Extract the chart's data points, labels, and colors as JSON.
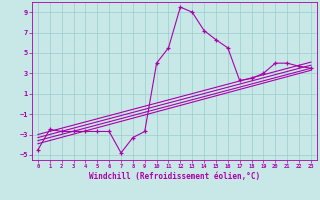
{
  "title": "",
  "xlabel": "Windchill (Refroidissement éolien,°C)",
  "ylabel": "",
  "bg_color": "#c8e8e8",
  "line_color": "#aa00aa",
  "grid_color": "#99cccc",
  "xlim": [
    -0.5,
    23.5
  ],
  "ylim": [
    -5.5,
    10.0
  ],
  "xtick_vals": [
    0,
    1,
    2,
    3,
    4,
    5,
    6,
    7,
    8,
    9,
    10,
    11,
    12,
    13,
    14,
    15,
    16,
    17,
    18,
    19,
    20,
    21,
    22,
    23
  ],
  "ytick_vals": [
    -5,
    -3,
    -1,
    1,
    3,
    5,
    7,
    9
  ],
  "data_x": [
    0,
    1,
    2,
    3,
    4,
    5,
    6,
    7,
    8,
    9,
    10,
    11,
    12,
    13,
    14,
    15,
    16,
    17,
    18,
    19,
    20,
    21,
    22,
    23
  ],
  "data_y": [
    -4.5,
    -2.5,
    -2.7,
    -2.7,
    -2.7,
    -2.7,
    -2.7,
    -4.8,
    -3.3,
    -2.7,
    4.0,
    5.5,
    9.5,
    9.0,
    7.2,
    6.3,
    5.5,
    2.3,
    2.5,
    3.0,
    4.0,
    4.0,
    3.7,
    3.5
  ],
  "reg_lines": [
    {
      "x0": 0,
      "y0": -3.9,
      "x1": 23,
      "y1": 3.3
    },
    {
      "x0": 0,
      "y0": -3.6,
      "x1": 23,
      "y1": 3.5
    },
    {
      "x0": 0,
      "y0": -3.3,
      "x1": 23,
      "y1": 3.8
    },
    {
      "x0": 0,
      "y0": -3.0,
      "x1": 23,
      "y1": 4.1
    }
  ]
}
